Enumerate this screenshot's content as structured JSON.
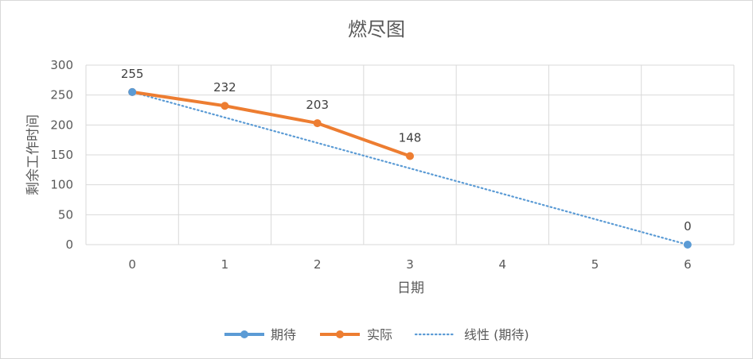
{
  "chart_data": {
    "type": "line",
    "title": "燃尽图",
    "xlabel": "日期",
    "ylabel": "剩余工作时间",
    "x": [
      0,
      1,
      2,
      3,
      4,
      5,
      6
    ],
    "xlim": [
      -0.5,
      6.5
    ],
    "ylim": [
      0,
      300
    ],
    "yticks": [
      0,
      50,
      100,
      150,
      200,
      250,
      300
    ],
    "grid": true,
    "legend_position": "bottom",
    "series": [
      {
        "name": "期待",
        "points": [
          [
            0,
            255
          ],
          [
            6,
            0
          ]
        ],
        "color": "#5b9bd5",
        "line": "none",
        "marker": "circle",
        "labels": [
          null,
          "0"
        ]
      },
      {
        "name": "实际",
        "points": [
          [
            0,
            255
          ],
          [
            1,
            232
          ],
          [
            2,
            203
          ],
          [
            3,
            148
          ]
        ],
        "color": "#ed7d31",
        "line": "solid",
        "marker": "circle",
        "labels": [
          "255",
          "232",
          "203",
          "148"
        ]
      },
      {
        "name": "线性 (期待)",
        "points": [
          [
            0,
            255
          ],
          [
            6,
            0
          ]
        ],
        "color": "#5b9bd5",
        "line": "dotted",
        "marker": "none",
        "trendline_of": "期待"
      }
    ]
  }
}
